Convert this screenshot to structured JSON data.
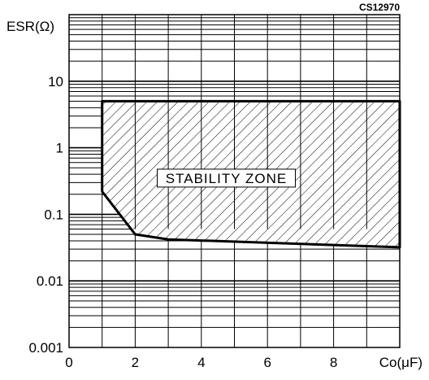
{
  "chart_data": {
    "type": "area",
    "title": "",
    "code": "CS12970",
    "xlabel": "Co(μF)",
    "ylabel": "ESR(Ω)",
    "xlim": [
      0,
      10
    ],
    "ylim": [
      0.001,
      100
    ],
    "y_scale": "log",
    "grid": true,
    "x_ticks": [
      0,
      2,
      4,
      6,
      8
    ],
    "x_tick_labels": [
      "0",
      "2",
      "4",
      "6",
      "8"
    ],
    "y_ticks": [
      0.001,
      0.01,
      0.1,
      1,
      10
    ],
    "y_tick_labels": [
      "0.001",
      "0.01",
      "0.1",
      "1",
      "10"
    ],
    "annotation": "STABILITY ZONE",
    "upper_bound": {
      "x": [
        1,
        10
      ],
      "y": [
        5,
        5
      ]
    },
    "lower_bound": {
      "x": [
        1,
        1,
        2,
        3,
        10
      ],
      "y": [
        5,
        0.22,
        0.05,
        0.042,
        0.032
      ]
    }
  }
}
